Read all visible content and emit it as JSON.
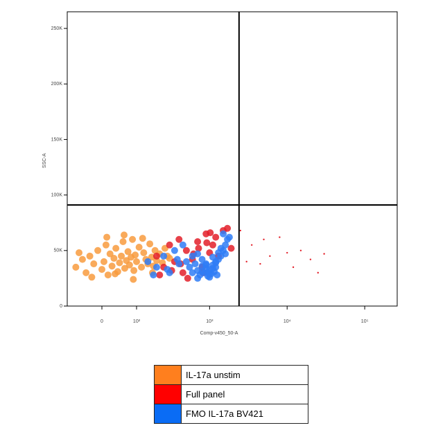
{
  "chart_data": {
    "type": "scatter",
    "x_label": "Comp-v450_50-A",
    "y_label": "SSC-A",
    "x_scale": "biexponential",
    "xlim": [
      -100,
      262144
    ],
    "ylim": [
      0,
      265000
    ],
    "xticks": [
      0,
      {
        "value": 100,
        "label": "10²"
      },
      {
        "value": 1000,
        "label": "10³"
      },
      {
        "value": 10000,
        "label": "10⁴"
      },
      {
        "value": 100000,
        "label": "10⁵"
      }
    ],
    "yticks": [
      0,
      {
        "value": 50000,
        "label": "50K"
      },
      {
        "value": 100000,
        "label": "100K"
      },
      {
        "value": 150000,
        "label": "150K"
      },
      {
        "value": 200000,
        "label": "200K"
      },
      {
        "value": 250000,
        "label": "250K"
      }
    ],
    "gates": {
      "x": 2400,
      "y": 91000
    },
    "series": [
      {
        "name": "IL-17a unstim",
        "color": "#ff7f1e",
        "point_color": "#f89b3e",
        "x": [
          -70,
          -50,
          -40,
          -30,
          -20,
          -10,
          0,
          5,
          10,
          15,
          20,
          25,
          30,
          35,
          40,
          45,
          50,
          55,
          60,
          65,
          70,
          75,
          80,
          85,
          90,
          95,
          100,
          110,
          120,
          130,
          140,
          150,
          160,
          170,
          180,
          190,
          200,
          220,
          240,
          260,
          280,
          300,
          -60,
          -25,
          12,
          33,
          58,
          88,
          125,
          175
        ],
        "values": [
          35000,
          42000,
          30000,
          45000,
          38000,
          50000,
          33000,
          40000,
          55000,
          28000,
          47000,
          36000,
          43000,
          52000,
          31000,
          39000,
          45000,
          58000,
          34000,
          41000,
          49000,
          37000,
          44000,
          60000,
          32000,
          46000,
          40000,
          53000,
          35000,
          48000,
          42000,
          38000,
          56000,
          44000,
          36000,
          50000,
          41000,
          47000,
          39000,
          52000,
          45000,
          43000,
          48000,
          26000,
          62000,
          29000,
          64000,
          24000,
          61000,
          30000
        ]
      },
      {
        "name": "Full panel",
        "color": "#ff0000",
        "point_color": "#e3202a",
        "x": [
          200,
          250,
          300,
          350,
          400,
          450,
          500,
          600,
          700,
          800,
          900,
          1000,
          1100,
          1200,
          1300,
          1500,
          1700,
          1900,
          220,
          320,
          420,
          520,
          620,
          720,
          820,
          920,
          1020,
          2500,
          3000,
          3500,
          4500,
          5000,
          6000,
          8000,
          10000,
          12000,
          15000,
          20000,
          25000,
          30000
        ],
        "values": [
          45000,
          35000,
          55000,
          40000,
          60000,
          30000,
          50000,
          42000,
          58000,
          35000,
          65000,
          48000,
          55000,
          62000,
          45000,
          68000,
          70000,
          52000,
          28000,
          32000,
          38000,
          25000,
          47000,
          52000,
          30000,
          57000,
          66000,
          68000,
          40000,
          55000,
          38000,
          60000,
          45000,
          62000,
          48000,
          35000,
          50000,
          42000,
          30000,
          47000
        ]
      },
      {
        "name": "FMO IL-17a BV421",
        "color": "#0a6cf5",
        "point_color": "#2f7df6",
        "x": [
          500,
          550,
          600,
          650,
          700,
          750,
          800,
          850,
          900,
          950,
          1000,
          1050,
          1100,
          1150,
          1200,
          1300,
          1400,
          1500,
          1600,
          1700,
          600,
          700,
          800,
          900,
          1000,
          1100,
          1200,
          1300,
          1400,
          1500,
          150,
          200,
          250,
          300,
          350,
          400,
          450,
          180,
          280,
          380,
          800,
          900,
          1000,
          1100,
          1200,
          1600,
          1800,
          700,
          950,
          1250
        ],
        "values": [
          40000,
          35000,
          30000,
          38000,
          32000,
          28000,
          36000,
          30000,
          34000,
          27000,
          33000,
          29000,
          37000,
          31000,
          35000,
          42000,
          45000,
          50000,
          55000,
          60000,
          45000,
          25000,
          42000,
          38000,
          26000,
          44000,
          40000,
          48000,
          52000,
          65000,
          40000,
          35000,
          45000,
          30000,
          50000,
          38000,
          55000,
          28000,
          33000,
          42000,
          31000,
          37000,
          29000,
          34000,
          39000,
          47000,
          62000,
          47000,
          30000,
          28000
        ]
      }
    ]
  }
}
